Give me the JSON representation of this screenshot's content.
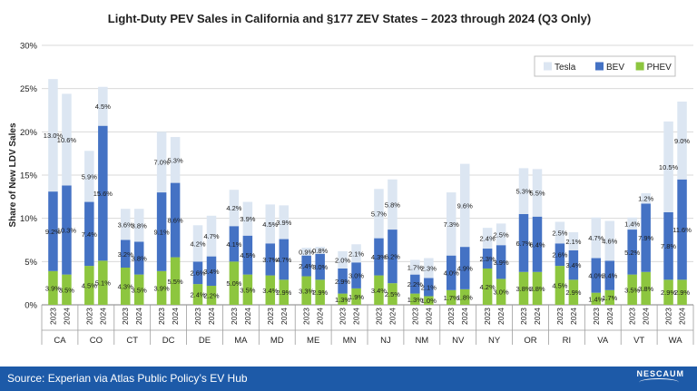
{
  "chart_data": {
    "type": "bar",
    "stacked": true,
    "title": "Light-Duty PEV Sales in California and §177 ZEV States – 2023 through 2024 (Q3 Only)",
    "ylabel": "Share of New LDV Sales",
    "ylim": [
      0,
      30
    ],
    "yticks": [
      "0%",
      "5%",
      "10%",
      "15%",
      "20%",
      "25%",
      "30%"
    ],
    "gridlines": true,
    "legend_position": "top-right",
    "years": [
      "2023",
      "2024"
    ],
    "groups": [
      "CA",
      "CO",
      "CT",
      "DC",
      "DE",
      "MA",
      "MD",
      "ME",
      "MN",
      "NJ",
      "NM",
      "NV",
      "NY",
      "OR",
      "RI",
      "VA",
      "VT",
      "WA"
    ],
    "series": [
      {
        "name": "PHEV",
        "color": "#8dc63f",
        "labels": [
          "3.9%",
          "3.5%",
          "4.5%",
          "5.1%",
          "4.3%",
          "3.5%",
          "3.9%",
          "5.5%",
          "2.4%",
          "2.2%",
          "5.0%",
          "3.5%",
          "3.4%",
          "2.9%",
          "3.3%",
          "2.9%",
          "1.3%",
          "1.9%",
          "3.4%",
          "2.5%",
          "1.3%",
          "1.0%",
          "1.7%",
          "1.8%",
          "4.2%",
          "3.0%",
          "3.8%",
          "3.8%",
          "4.5%",
          "2.9%",
          "1.4%",
          "1.7%",
          "3.5%",
          "3.8%",
          "2.9%",
          "2.9%"
        ],
        "values": [
          3.9,
          3.5,
          4.5,
          5.1,
          4.3,
          3.5,
          3.9,
          5.5,
          2.4,
          2.2,
          5.0,
          3.5,
          3.4,
          2.9,
          3.3,
          2.9,
          1.3,
          1.9,
          3.4,
          2.5,
          1.3,
          1.0,
          1.7,
          1.8,
          4.2,
          3.0,
          3.8,
          3.8,
          4.5,
          2.9,
          1.4,
          1.7,
          3.5,
          3.8,
          2.9,
          2.9
        ]
      },
      {
        "name": "BEV",
        "color": "#4472c4",
        "labels": [
          "9.2%",
          "10.3%",
          "7.4%",
          "15.6%",
          "3.2%",
          "3.8%",
          "9.1%",
          "8.6%",
          "2.6%",
          "3.4%",
          "4.1%",
          "4.5%",
          "3.7%",
          "4.7%",
          "2.4%",
          "3.0%",
          "2.9%",
          "3.0%",
          "4.3%",
          "6.2%",
          "2.2%",
          "2.1%",
          "4.0%",
          "4.9%",
          "2.3%",
          "3.9%",
          "6.7%",
          "6.4%",
          "2.6%",
          "3.4%",
          "4.0%",
          "3.4%",
          "5.2%",
          "7.9%",
          "7.8%",
          "11.6%"
        ],
        "values": [
          9.2,
          10.3,
          7.4,
          15.6,
          3.2,
          3.8,
          9.1,
          8.6,
          2.6,
          3.4,
          4.1,
          4.5,
          3.7,
          4.7,
          2.4,
          3.0,
          2.9,
          3.0,
          4.3,
          6.2,
          2.2,
          2.1,
          4.0,
          4.9,
          2.3,
          3.9,
          6.7,
          6.4,
          2.6,
          3.4,
          4.0,
          3.4,
          5.2,
          7.9,
          7.8,
          11.6
        ]
      },
      {
        "name": "Tesla",
        "color": "#dce6f2",
        "labels": [
          "13.0%",
          "10.6%",
          "5.9%",
          "4.5%",
          "3.6%",
          "3.8%",
          "7.0%",
          "5.3%",
          "4.2%",
          "4.7%",
          "4.2%",
          "3.9%",
          "4.5%",
          "3.9%",
          "0.9%",
          "0.8%",
          "2.0%",
          "2.1%",
          "5.7%",
          "5.8%",
          "1.7%",
          "2.3%",
          "7.3%",
          "9.6%",
          "2.4%",
          "2.5%",
          "5.3%",
          "5.5%",
          "2.5%",
          "2.1%",
          "4.7%",
          "4.6%",
          "1.4%",
          "1.2%",
          "10.5%",
          "9.0%"
        ],
        "values": [
          13.0,
          10.6,
          5.9,
          4.5,
          3.6,
          3.8,
          7.0,
          5.3,
          4.2,
          4.7,
          4.2,
          3.9,
          4.5,
          3.9,
          0.9,
          0.8,
          2.0,
          2.1,
          5.7,
          5.8,
          1.7,
          2.3,
          7.3,
          9.6,
          2.4,
          2.5,
          5.3,
          5.5,
          2.5,
          2.1,
          4.7,
          4.6,
          1.4,
          1.2,
          10.5,
          9.0
        ]
      }
    ],
    "legend_order": [
      "Tesla",
      "BEV",
      "PHEV"
    ]
  },
  "footer": {
    "source": "Source: Experian via Atlas Public Policy’s EV Hub",
    "logo": "NESCAUM"
  }
}
